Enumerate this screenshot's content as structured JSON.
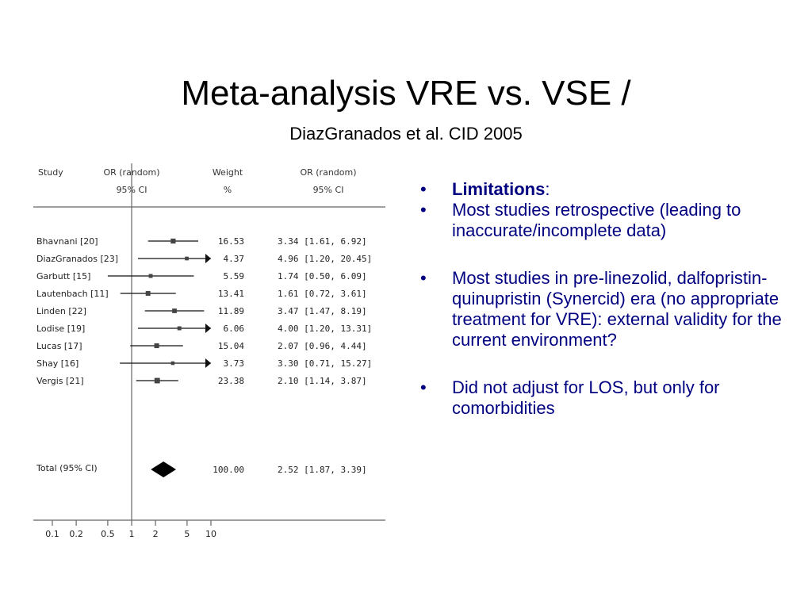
{
  "slide": {
    "title": "Meta-analysis VRE vs. VSE /",
    "subtitle": "DiazGranados et al. CID 2005"
  },
  "bullets": [
    {
      "bold": "Limitations",
      "text": ":"
    },
    {
      "text": "Most studies retrospective (leading to inaccurate/incomplete data)"
    },
    {
      "text": "Most studies in pre-linezolid, dalfopristin-quinupristin (Synercid) era (no appropriate treatment for VRE): external validity for the current environment?"
    },
    {
      "text": "Did not adjust for LOS, but only for comorbidities"
    }
  ],
  "chart_data": {
    "type": "forest",
    "x_scale": "log",
    "x_ticks": [
      0.1,
      0.2,
      0.5,
      1,
      2,
      5,
      10
    ],
    "x_tick_labels": [
      "0.1",
      "0.2",
      "0.5",
      "1",
      "2",
      "5",
      "10"
    ],
    "xlim": [
      0.07,
      10
    ],
    "headers": {
      "study": "Study",
      "or_plot": [
        "OR (random)",
        "95% CI"
      ],
      "weight": [
        "Weight",
        "%"
      ],
      "or_text": [
        "OR (random)",
        "95% CI"
      ]
    },
    "studies": [
      {
        "name": "Bhavnani [20]",
        "or": 3.34,
        "lo": 1.61,
        "hi": 6.92,
        "weight": "16.53",
        "ci_text": "3.34 [1.61, 6.92]"
      },
      {
        "name": "DiazGranados [23]",
        "or": 4.96,
        "lo": 1.2,
        "hi": 20.45,
        "weight": "4.37",
        "ci_text": "4.96 [1.20, 20.45]"
      },
      {
        "name": "Garbutt [15]",
        "or": 1.74,
        "lo": 0.5,
        "hi": 6.09,
        "weight": "5.59",
        "ci_text": "1.74 [0.50, 6.09]"
      },
      {
        "name": "Lautenbach [11]",
        "or": 1.61,
        "lo": 0.72,
        "hi": 3.61,
        "weight": "13.41",
        "ci_text": "1.61 [0.72, 3.61]"
      },
      {
        "name": "Linden [22]",
        "or": 3.47,
        "lo": 1.47,
        "hi": 8.19,
        "weight": "11.89",
        "ci_text": "3.47 [1.47, 8.19]"
      },
      {
        "name": "Lodise [19]",
        "or": 4.0,
        "lo": 1.2,
        "hi": 13.31,
        "weight": "6.06",
        "ci_text": "4.00 [1.20, 13.31]"
      },
      {
        "name": "Lucas [17]",
        "or": 2.07,
        "lo": 0.96,
        "hi": 4.44,
        "weight": "15.04",
        "ci_text": "2.07 [0.96, 4.44]"
      },
      {
        "name": "Shay [16]",
        "or": 3.3,
        "lo": 0.71,
        "hi": 15.27,
        "weight": "3.73",
        "ci_text": "3.30 [0.71, 15.27]"
      },
      {
        "name": "Vergis [21]",
        "or": 2.1,
        "lo": 1.14,
        "hi": 3.87,
        "weight": "23.38",
        "ci_text": "2.10 [1.14, 3.87]"
      }
    ],
    "total": {
      "name": "Total (95% CI)",
      "or": 2.52,
      "lo": 1.87,
      "hi": 3.39,
      "weight": "100.00",
      "ci_text": "2.52 [1.87, 3.39]"
    }
  }
}
